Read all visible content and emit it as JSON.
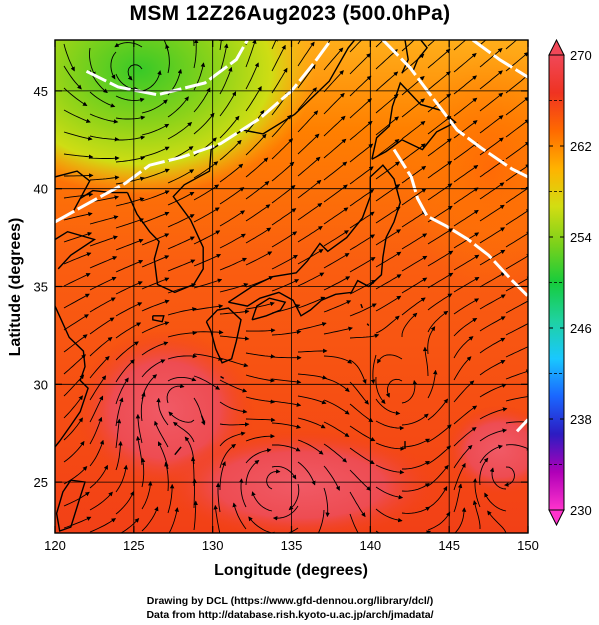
{
  "title": "MSM 12Z26Aug2023 (500.0hPa)",
  "credits": {
    "line1": "Drawing by DCL (https://www.gfd-dennou.org/library/dcl/)",
    "line2": "Data from http://database.rish.kyoto-u.ac.jp/arch/jmadata/"
  },
  "map": {
    "projection": "equirectangular",
    "lon_range": [
      120,
      150
    ],
    "lat_range": [
      22.4,
      47.6
    ],
    "xlabel": "Longitude (degrees)",
    "ylabel": "Latitude  (degrees)",
    "x_ticks": [
      120,
      125,
      130,
      135,
      140,
      145,
      150
    ],
    "y_ticks": [
      25,
      30,
      35,
      40,
      45
    ],
    "grid": true,
    "field": "temperature (shaded) with wind streamlines",
    "contour_color": "#ffffff",
    "coastline_color": "#000000"
  },
  "colorbar": {
    "min": 230,
    "max": 270,
    "tick_labels": [
      "230",
      "238",
      "246",
      "254",
      "262",
      "270"
    ],
    "colormap": [
      "#ff33cc",
      "#b000b8",
      "#2c1cc2",
      "#1a66ff",
      "#19c8ff",
      "#1fd2a0",
      "#16cc3c",
      "#7ad11b",
      "#d2dd12",
      "#ffb300",
      "#ff6a00",
      "#ef3322",
      "#f04858"
    ]
  }
}
